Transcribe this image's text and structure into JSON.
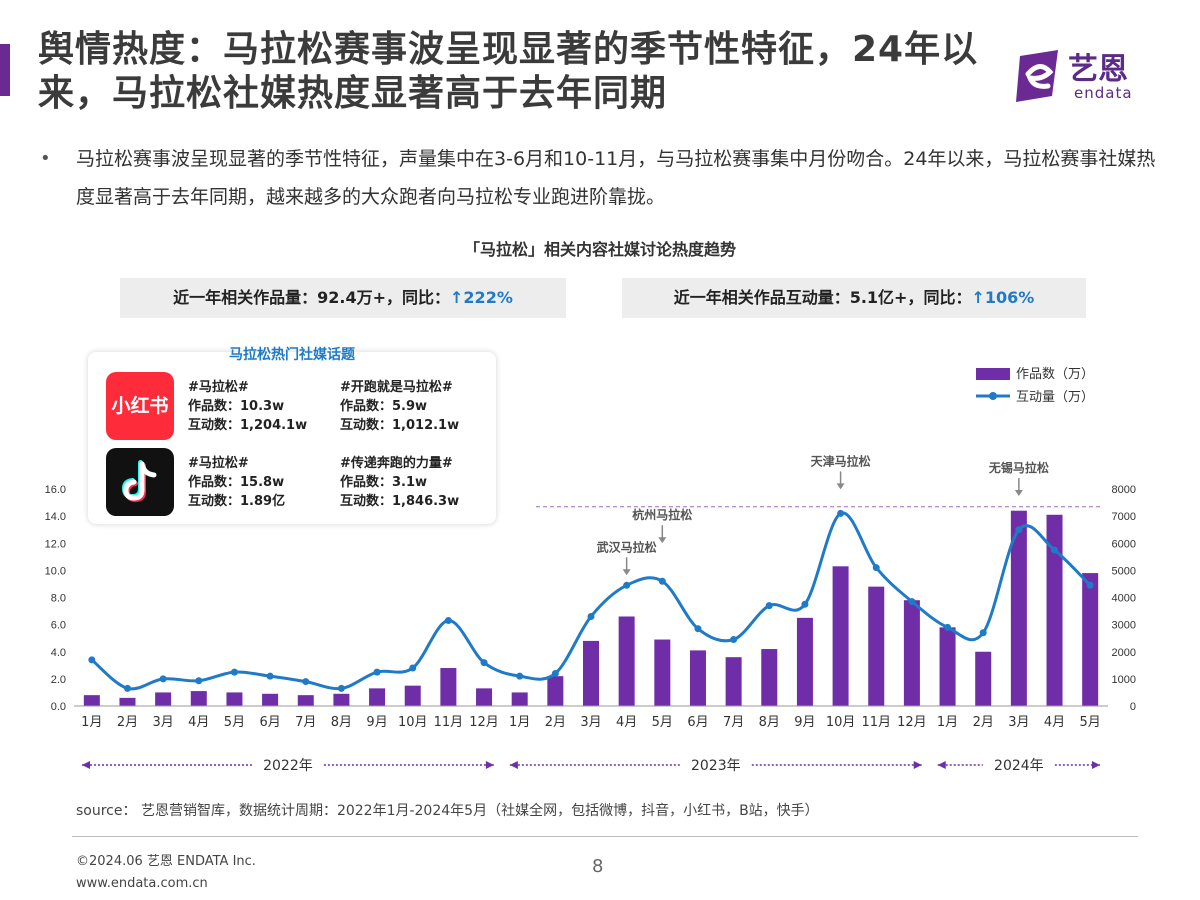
{
  "title": "舆情热度：马拉松赛事波呈现显著的季节性特征，24年以来，马拉松社媒热度显著高于去年同期",
  "logo": {
    "cn": "艺恩",
    "en": "endata"
  },
  "intro": "马拉松赛事波呈现显著的季节性特征，声量集中在3-6月和10-11月，与马拉松赛事集中月份吻合。24年以来，马拉松赛事社媒热度显著高于去年同期，越来越多的大众跑者向马拉松专业跑进阶靠拢。",
  "stats": [
    {
      "label": "近一年相关作品量：92.4万+，同比：",
      "value": "↑222%"
    },
    {
      "label": "近一年相关作品互动量：5.1亿+，同比：",
      "value": "↑106%"
    }
  ],
  "topics_box": {
    "title": "马拉松热门社媒话题",
    "apps": [
      {
        "icon": "xiaohongshu-icon",
        "name": "小红书",
        "color": "#fe2c3b",
        "topics": [
          {
            "tag": "#马拉松#",
            "works": "作品数：10.3w",
            "interact": "互动数：1,204.1w"
          },
          {
            "tag": "#开跑就是马拉松#",
            "works": "作品数：5.9w",
            "interact": "互动数：1,012.1w"
          }
        ]
      },
      {
        "icon": "tiktok-icon",
        "name": "",
        "color": "#111111",
        "topics": [
          {
            "tag": "#马拉松#",
            "works": "作品数：15.8w",
            "interact": "互动数：1.89亿"
          },
          {
            "tag": "#传递奔跑的力量#",
            "works": "作品数：3.1w",
            "interact": "互动数：1,846.3w"
          }
        ]
      }
    ]
  },
  "chart_data": {
    "type": "bar",
    "title": "「马拉松」相关内容社媒讨论热度趋势",
    "categories": [
      "1月",
      "2月",
      "3月",
      "4月",
      "5月",
      "6月",
      "7月",
      "8月",
      "9月",
      "10月",
      "11月",
      "12月",
      "1月",
      "2月",
      "3月",
      "4月",
      "5月",
      "6月",
      "7月",
      "8月",
      "9月",
      "10月",
      "11月",
      "12月",
      "1月",
      "2月",
      "3月",
      "4月",
      "5月"
    ],
    "years": [
      {
        "label": "2022年",
        "start": 0,
        "end": 11
      },
      {
        "label": "2023年",
        "start": 12,
        "end": 23
      },
      {
        "label": "2024年",
        "start": 24,
        "end": 28
      }
    ],
    "series": [
      {
        "name": "作品数（万）",
        "type": "bar",
        "axis": "left",
        "color": "#6f2da8",
        "values": [
          0.8,
          0.6,
          1.0,
          1.1,
          1.0,
          0.9,
          0.8,
          0.9,
          1.3,
          1.5,
          2.8,
          1.3,
          1.0,
          2.2,
          4.8,
          6.6,
          4.9,
          4.1,
          3.6,
          4.2,
          6.5,
          10.3,
          8.8,
          7.8,
          5.8,
          4.0,
          14.4,
          14.1,
          9.8
        ]
      },
      {
        "name": "互动量（万）",
        "type": "line",
        "axis": "right",
        "color": "#1f7ac7",
        "values": [
          1700,
          650,
          1000,
          930,
          1250,
          1100,
          900,
          650,
          1250,
          1400,
          3150,
          1600,
          1100,
          1200,
          3300,
          4450,
          4600,
          2850,
          2450,
          3700,
          3750,
          7100,
          5100,
          3850,
          2900,
          2700,
          6500,
          5750,
          4450
        ]
      }
    ],
    "ylim_left": [
      0,
      16
    ],
    "yticks_left": [
      "0.0",
      "2.0",
      "4.0",
      "6.0",
      "8.0",
      "10.0",
      "12.0",
      "14.0",
      "16.0"
    ],
    "ylim_right": [
      0,
      8000
    ],
    "yticks_right": [
      "0",
      "1000",
      "2000",
      "3000",
      "4000",
      "5000",
      "6000",
      "7000",
      "8000"
    ],
    "annotations": [
      {
        "text": "武汉马拉松",
        "index": 15
      },
      {
        "text": "杭州马拉松",
        "index": 16
      },
      {
        "text": "天津马拉松",
        "index": 21
      },
      {
        "text": "无锡马拉松",
        "index": 26
      }
    ],
    "legend": "top-right"
  },
  "source": "source： 艺恩营销智库，数据统计周期：2022年1月-2024年5月（社媒全网，包括微博，抖音，小红书，B站，快手）",
  "copyright": "©2024.06 艺恩 ENDATA Inc.",
  "website": "www.endata.com.cn",
  "page_number": "8",
  "colors": {
    "brand": "#6b2a93",
    "bar": "#6f2da8",
    "line": "#1f7ac7",
    "up": "#1f7ac7"
  }
}
